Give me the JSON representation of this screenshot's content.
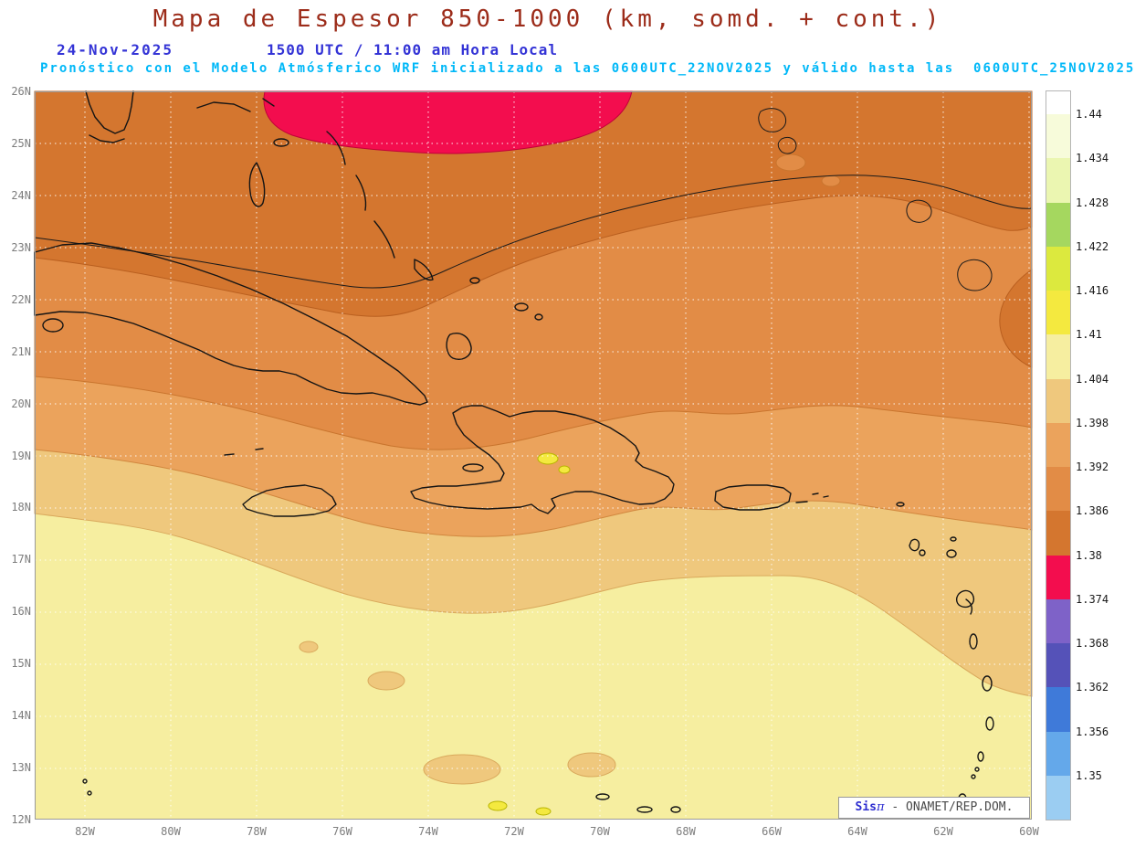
{
  "header": {
    "title": "Mapa de Espesor 850-1000 (km, somd. + cont.)",
    "date": "24-Nov-2025",
    "time": "1500 UTC / 11:00 am Hora Local",
    "forecast_line": "Pronóstico con el Modelo Atmósferico WRF inicializado a las 0600UTC_22NOV2025 y válido hasta las  0600UTC_25NOV2025"
  },
  "map": {
    "lat_labels": [
      "26N",
      "25N",
      "24N",
      "23N",
      "22N",
      "21N",
      "20N",
      "19N",
      "18N",
      "17N",
      "16N",
      "15N",
      "14N",
      "13N",
      "12N"
    ],
    "lon_labels": [
      "82W",
      "80W",
      "78W",
      "76W",
      "74W",
      "72W",
      "70W",
      "68W",
      "66W",
      "64W",
      "62W",
      "60W"
    ],
    "watermark": {
      "brand": "Sis",
      "pi": "π",
      "org": " - ONAMET/REP.DOM."
    }
  },
  "colorbar": {
    "labels": [
      "1.44",
      "1.434",
      "1.428",
      "1.422",
      "1.416",
      "1.41",
      "1.404",
      "1.398",
      "1.392",
      "1.386",
      "1.38",
      "1.374",
      "1.368",
      "1.362",
      "1.356",
      "1.35"
    ],
    "colors": [
      "#ffffff",
      "#f7fbda",
      "#ebf6b1",
      "#a5d75f",
      "#dce93e",
      "#f4e93f",
      "#f6eea0",
      "#efc87d",
      "#eba35c",
      "#e28c46",
      "#d4762f",
      "#f30d4e",
      "#7e62c8",
      "#5552b8",
      "#3f7ad9",
      "#64a8ea",
      "#9bcdf2"
    ]
  },
  "colors": {
    "band_pale_yellow": "#f6eea0",
    "band_tan": "#efc87d",
    "band_light_orange": "#eba35c",
    "band_orange": "#e28c46",
    "band_dark_orange": "#d4762f",
    "band_red": "#f30d4e",
    "band_yellow_spot": "#f4e93f",
    "coastline": "#141414",
    "grid": "#ffffff",
    "title_color": "#9c2c1a",
    "date_color": "#3434d6",
    "forecast_color": "#00b8f8"
  },
  "chart_data": {
    "type": "contour-map",
    "title": "Mapa de Espesor 850-1000 (km, somd. + cont.)",
    "region": {
      "lat_range": [
        "12N",
        "26N"
      ],
      "lon_range": [
        "84W",
        "60W"
      ]
    },
    "scale_values": [
      1.44,
      1.434,
      1.428,
      1.422,
      1.416,
      1.41,
      1.404,
      1.398,
      1.392,
      1.386,
      1.38,
      1.374,
      1.368,
      1.362,
      1.356,
      1.35
    ],
    "units": "km",
    "legend_position": "right"
  }
}
